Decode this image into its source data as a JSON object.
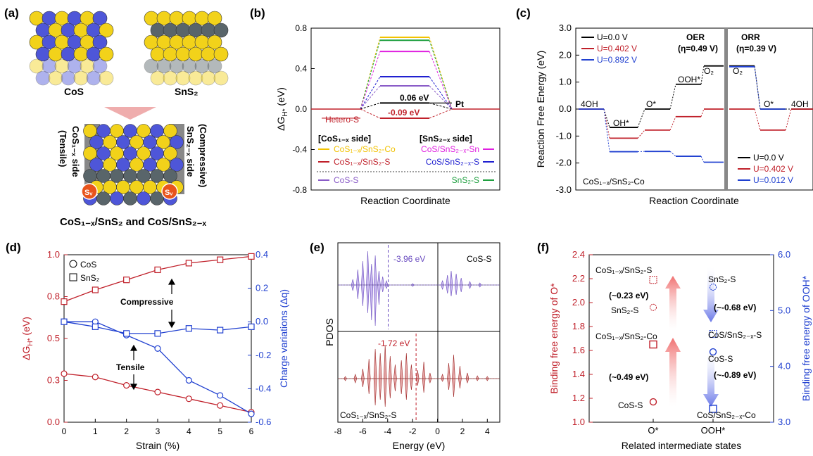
{
  "panels": {
    "a": {
      "label": "(a)",
      "cos": "CoS",
      "sns2": "SnS₂",
      "left_side": "CoS₁₋ₓ side",
      "left_sub": "(Tensile)",
      "right_side": "SnS₂₋ₓ side",
      "right_sub": "(Compressive)",
      "sv": "Sᵥ",
      "caption": "CoS₁₋ₓ/SnS₂ and CoS/SnS₂₋ₓ"
    },
    "b": {
      "label": "(b)",
      "ylabel": "ΔG",
      "ylabel_sub": "H*",
      "ylabel_unit": " (eV)",
      "xlabel": "Reaction Coordinate",
      "pt": "Pt",
      "hetero": "Hetero-S",
      "v1": "0.06 eV",
      "v2": "-0.09 eV",
      "left_header": "[CoS₁₋ₓ side]",
      "right_header": "[SnS₂₋ₓ side]",
      "legend_left": [
        "CoS₁₋ₓ/SnS₂-Co",
        "CoS₁₋ₓ/SnS₂-S",
        "CoS-S"
      ],
      "legend_right": [
        "CoS/SnS₂₋ₓ-Sn",
        "CoS/SnS₂₋ₓ-S",
        "SnS₂-S"
      ],
      "colors": [
        "#f2c200",
        "#c0202a",
        "#8a5cc7",
        "#e020e0",
        "#2020d0",
        "#20a040"
      ]
    },
    "c": {
      "label": "(c)",
      "ylabel": "Reaction Free Energy (eV)",
      "xlabel": "Reaction Coordinate",
      "oer": "OER",
      "oer_val": "(η=0.49 V)",
      "orr": "ORR",
      "orr_val": "(η=0.39 V)",
      "legend_top": [
        "U=0.0 V",
        "U=0.402 V",
        "U=0.892 V"
      ],
      "legend_bottom": [
        "U=0.0 V",
        "U=0.402 V",
        "U=0.012 V"
      ],
      "states": [
        "4OH",
        "OH*",
        "O*",
        "OOH*",
        "O₂",
        "O₂",
        "O*",
        "4OH"
      ],
      "sample": "CoS₁₋ₓ/SnS₂-Co",
      "colors": [
        "#000000",
        "#c0202a",
        "#2040d0"
      ]
    },
    "d": {
      "label": "(d)",
      "ylabel_left": "ΔG",
      "ylabel_left_sub": "H*",
      "ylabel_left_unit": " (eV)",
      "ylabel_right": "Charge variations (Δq)",
      "xlabel": "Strain (%)",
      "legend": [
        "CoS",
        "SnS₂"
      ],
      "compressive": "Compressive",
      "tensile": "Tensile"
    },
    "e": {
      "label": "(e)",
      "ylabel": "PDOS",
      "xlabel": "Energy (eV)",
      "top_label": "CoS-S",
      "top_center": "-3.96 eV",
      "bottom_label": "CoS₁₋ₓ/SnS₂-S",
      "bottom_center": "-1.72 eV"
    },
    "f": {
      "label": "(f)",
      "ylabel_left": "Binding free energy of O*",
      "ylabel_right": "Binding free energy of OOH*",
      "xlabel": "Related intermediate states",
      "x_ticks": [
        "O*",
        "OOH*"
      ],
      "o_labels": [
        "CoS₁₋ₓ/SnS₂-S",
        "SnS₂-S",
        "CoS₁₋ₓ/SnS₂-Co",
        "CoS-S"
      ],
      "ooh_labels": [
        "SnS₂-S",
        "CoS/SnS₂₋ₓ-S",
        "CoS-S",
        "CoS/SnS₂₋ₓ-Co"
      ],
      "o_diffs": [
        "(~0.23 eV)",
        "(~0.49 eV)"
      ],
      "ooh_diffs": [
        "(~-0.68 eV)",
        "(~-0.89 eV)"
      ]
    }
  },
  "chart_data": [
    {
      "panel": "b",
      "type": "line",
      "ylim": [
        -0.8,
        0.8
      ],
      "yticks": [
        "0.8",
        "0.4",
        "0.0",
        "-0.4",
        "-0.8"
      ],
      "series": [
        {
          "name": "CoS₁₋ₓ/SnS₂-Co",
          "value": 0.71
        },
        {
          "name": "CoS/SnS₂₋ₓ-Sn",
          "value": 0.68
        },
        {
          "name": "CoS₁₋ₓ/SnS₂-S",
          "value": 0.57
        },
        {
          "name": "CoS/SnS₂₋ₓ-S",
          "value": 0.32
        },
        {
          "name": "CoS-S",
          "value": 0.23
        },
        {
          "name": "Pt",
          "value": 0.06
        },
        {
          "name": "Hetero-S",
          "value": -0.09
        }
      ]
    },
    {
      "panel": "c",
      "type": "line",
      "ylim": [
        -3.0,
        3.0
      ],
      "yticks": [
        "3.0",
        "2.0",
        "1.0",
        "0.0",
        "-1.0",
        "-2.0",
        "-3.0"
      ],
      "series": [
        {
          "name": "U=0.0 V",
          "values": [
            0.0,
            -0.68,
            0.0,
            0.92,
            1.6,
            1.6,
            0.0,
            0.0
          ]
        },
        {
          "name": "U=0.402 V",
          "values": [
            0.0,
            -1.08,
            -0.78,
            -0.28,
            0.0,
            0.0,
            -0.78,
            0.0
          ]
        },
        {
          "name": "U=0.892 V",
          "values": [
            0.0,
            -1.58,
            -1.57,
            -1.75,
            -1.97
          ]
        },
        {
          "name": "U=0.012 V",
          "values": [
            1.57,
            0.0
          ]
        }
      ]
    },
    {
      "panel": "d",
      "type": "line",
      "x": [
        0,
        1,
        2,
        3,
        4,
        5,
        6
      ],
      "ylim_left": [
        0.0,
        1.0
      ],
      "ylim_right": [
        -0.6,
        0.4
      ],
      "yticks_left": [
        "0.0",
        "0.3",
        "0.5",
        "0.8",
        "1.0"
      ],
      "yticks_right": [
        "-0.6",
        "-0.4",
        "-0.2",
        "0.0",
        "0.2",
        "0.4"
      ],
      "series": [
        {
          "name": "CoS ΔG",
          "values": [
            0.29,
            0.27,
            0.22,
            0.18,
            0.14,
            0.1,
            0.06
          ]
        },
        {
          "name": "SnS₂ ΔG",
          "values": [
            0.72,
            0.79,
            0.85,
            0.91,
            0.95,
            0.97,
            0.99
          ]
        },
        {
          "name": "CoS Δq",
          "values": [
            0.0,
            0.0,
            -0.08,
            -0.16,
            -0.35,
            -0.44,
            -0.55
          ]
        },
        {
          "name": "SnS₂ Δq",
          "values": [
            0.0,
            -0.03,
            -0.07,
            -0.07,
            -0.04,
            -0.05,
            -0.03
          ]
        }
      ]
    },
    {
      "panel": "e",
      "type": "area",
      "xlim": [
        -8,
        5
      ],
      "xticks": [
        "-8",
        "-6",
        "-4",
        "-2",
        "0",
        "2",
        "4"
      ]
    },
    {
      "panel": "f",
      "type": "scatter",
      "ylim_left": [
        1.0,
        2.4
      ],
      "ylim_right": [
        3.0,
        6.0
      ],
      "yticks_left": [
        "1.0",
        "1.2",
        "1.4",
        "1.6",
        "1.8",
        "2.0",
        "2.2",
        "2.4"
      ],
      "yticks_right": [
        "3.0",
        "4.0",
        "5.0",
        "6.0"
      ],
      "o_values": [
        2.19,
        1.96,
        1.65,
        1.17
      ],
      "ooh_values": [
        5.42,
        4.58,
        4.26,
        3.24
      ]
    }
  ]
}
